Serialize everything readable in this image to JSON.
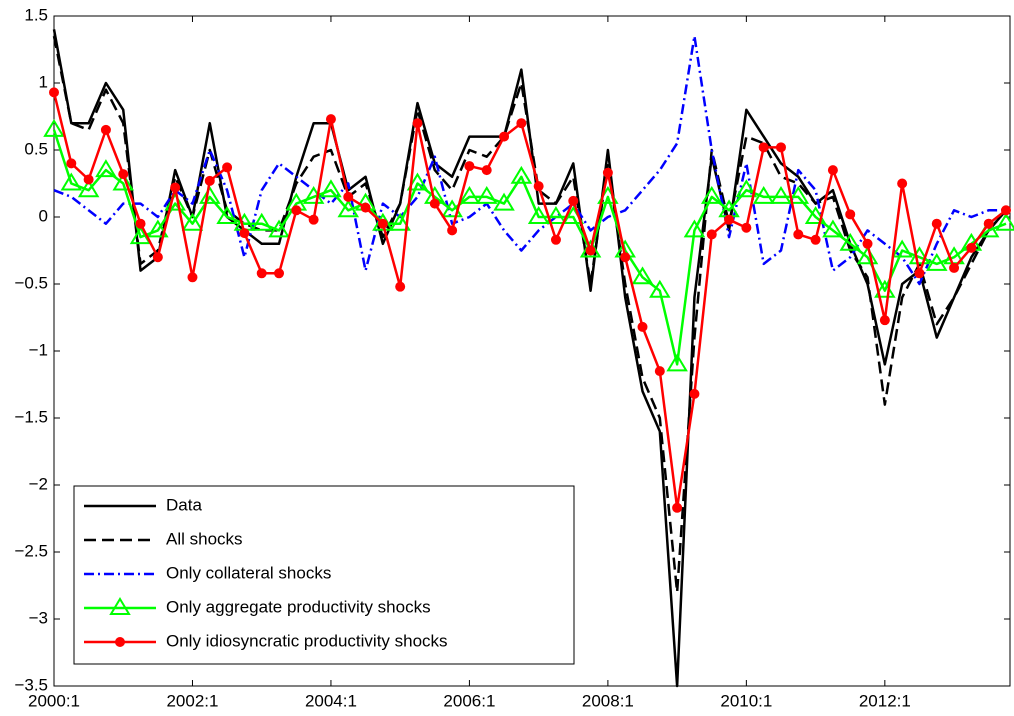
{
  "chart_data": {
    "type": "line",
    "categories": [
      "2000:1",
      null,
      null,
      null,
      null,
      null,
      null,
      null,
      "2002:1",
      null,
      null,
      null,
      null,
      null,
      null,
      null,
      "2004:1",
      null,
      null,
      null,
      null,
      null,
      null,
      null,
      "2006:1",
      null,
      null,
      null,
      null,
      null,
      null,
      null,
      "2008:1",
      null,
      null,
      null,
      null,
      null,
      null,
      null,
      "2010:1",
      null,
      null,
      null,
      null,
      null,
      null,
      null,
      "2012:1",
      null,
      null,
      null,
      null,
      null,
      null,
      null
    ],
    "ylim": [
      -3.5,
      1.5
    ],
    "yticks": [
      {
        "value": -3.5,
        "label": "−3.5"
      },
      {
        "value": -3,
        "label": "−3"
      },
      {
        "value": -2.5,
        "label": "−2.5"
      },
      {
        "value": -2,
        "label": "−2"
      },
      {
        "value": -1.5,
        "label": "−1.5"
      },
      {
        "value": -1,
        "label": "−1"
      },
      {
        "value": -0.5,
        "label": "−0.5"
      },
      0,
      0.5,
      1,
      1.5
    ],
    "legend": "lower left",
    "series": [
      {
        "name": "Data",
        "color": "#000000",
        "linestyle": "solid",
        "marker": "none",
        "values": [
          1.4,
          0.7,
          0.7,
          1.0,
          0.8,
          -0.4,
          -0.3,
          0.35,
          0.0,
          0.7,
          0.0,
          -0.1,
          -0.2,
          -0.2,
          0.3,
          0.7,
          0.7,
          0.2,
          0.3,
          -0.2,
          0.1,
          0.85,
          0.4,
          0.3,
          0.6,
          0.6,
          0.6,
          1.1,
          0.1,
          0.1,
          0.4,
          -0.55,
          0.5,
          -0.6,
          -1.3,
          -1.6,
          -3.5,
          -0.6,
          0.45,
          -0.1,
          0.8,
          0.6,
          0.4,
          0.3,
          0.1,
          0.2,
          -0.2,
          -0.5,
          -1.1,
          -0.5,
          -0.4,
          -0.9,
          -0.6,
          -0.3,
          -0.1,
          0.05
        ]
      },
      {
        "name": "All shocks",
        "color": "#000000",
        "linestyle": "dashed",
        "marker": "none",
        "values": [
          1.35,
          0.7,
          0.65,
          0.95,
          0.7,
          -0.35,
          -0.25,
          0.3,
          0.0,
          0.5,
          0.05,
          -0.05,
          -0.1,
          -0.1,
          0.25,
          0.45,
          0.5,
          0.15,
          0.25,
          -0.15,
          0.1,
          0.8,
          0.35,
          0.2,
          0.5,
          0.45,
          0.6,
          1.0,
          0.2,
          0.1,
          0.3,
          -0.5,
          0.4,
          -0.5,
          -1.2,
          -1.5,
          -2.8,
          -0.9,
          0.5,
          -0.05,
          0.6,
          0.55,
          0.3,
          0.25,
          0.1,
          0.15,
          -0.25,
          -0.45,
          -1.4,
          -0.6,
          -0.35,
          -0.8,
          -0.6,
          -0.35,
          -0.1,
          0.05
        ]
      },
      {
        "name": "Only collateral shocks",
        "color": "#0000ff",
        "linestyle": "dashdot",
        "marker": "none",
        "values": [
          0.2,
          0.15,
          0.05,
          -0.05,
          0.1,
          0.1,
          0.0,
          0.2,
          0.1,
          0.5,
          0.2,
          -0.3,
          0.2,
          0.4,
          0.3,
          0.2,
          0.1,
          0.25,
          -0.4,
          0.1,
          0.0,
          0.15,
          0.45,
          -0.05,
          0.0,
          0.1,
          -0.1,
          -0.25,
          -0.1,
          0.0,
          0.1,
          -0.1,
          0.0,
          0.05,
          0.2,
          0.35,
          0.55,
          1.35,
          0.5,
          -0.15,
          0.4,
          -0.35,
          -0.25,
          0.35,
          0.2,
          -0.4,
          -0.3,
          -0.1,
          -0.2,
          -0.3,
          -0.5,
          -0.2,
          0.05,
          0.0,
          0.05,
          0.05
        ]
      },
      {
        "name": "Only aggregate productivity shocks",
        "color": "#00ff00",
        "linestyle": "solid",
        "marker": "triangle",
        "values": [
          0.65,
          0.25,
          0.2,
          0.35,
          0.25,
          -0.15,
          -0.1,
          0.1,
          -0.05,
          0.15,
          0.0,
          -0.05,
          -0.05,
          -0.1,
          0.1,
          0.15,
          0.2,
          0.05,
          0.1,
          -0.05,
          -0.05,
          0.25,
          0.15,
          0.05,
          0.15,
          0.15,
          0.1,
          0.3,
          0.0,
          0.0,
          0.0,
          -0.25,
          0.15,
          -0.25,
          -0.45,
          -0.55,
          -1.1,
          -0.1,
          0.15,
          0.05,
          0.2,
          0.15,
          0.15,
          0.15,
          0.0,
          -0.1,
          -0.2,
          -0.3,
          -0.55,
          -0.25,
          -0.3,
          -0.35,
          -0.3,
          -0.2,
          -0.1,
          -0.05
        ]
      },
      {
        "name": "Only idiosyncratic productivity shocks",
        "color": "#ff0000",
        "linestyle": "solid",
        "marker": "circle",
        "values": [
          0.93,
          0.4,
          0.28,
          0.65,
          0.32,
          -0.05,
          -0.3,
          0.22,
          -0.45,
          0.27,
          0.37,
          -0.12,
          -0.42,
          -0.42,
          0.05,
          -0.02,
          0.73,
          0.15,
          0.07,
          -0.05,
          -0.52,
          0.7,
          0.1,
          -0.1,
          0.38,
          0.35,
          0.6,
          0.7,
          0.23,
          -0.17,
          0.12,
          -0.25,
          0.33,
          -0.3,
          -0.82,
          -1.15,
          -2.17,
          -1.32,
          -0.13,
          -0.02,
          -0.08,
          0.52,
          0.52,
          -0.13,
          -0.17,
          0.35,
          0.02,
          -0.2,
          -0.77,
          0.25,
          -0.42,
          -0.05,
          -0.38,
          -0.23,
          -0.05,
          0.05
        ]
      }
    ]
  }
}
